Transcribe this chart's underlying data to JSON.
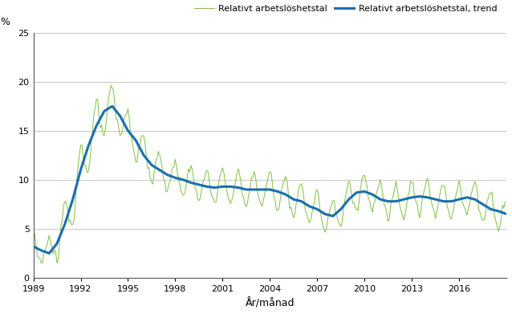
{
  "title": "",
  "ylabel": "%",
  "xlabel": "År/månad",
  "ylim": [
    0,
    25
  ],
  "yticks": [
    0,
    5,
    10,
    15,
    20,
    25
  ],
  "legend_labels": [
    "Relativt arbetslöshetstal",
    "Relativt arbetslöshetstal, trend"
  ],
  "line_color_raw": "#7dc142",
  "line_color_trend": "#1a6faf",
  "xtick_years": [
    1989,
    1992,
    1995,
    1998,
    2001,
    2004,
    2007,
    2010,
    2013,
    2016
  ],
  "background_color": "#ffffff",
  "grid_color": "#c8c8c8"
}
